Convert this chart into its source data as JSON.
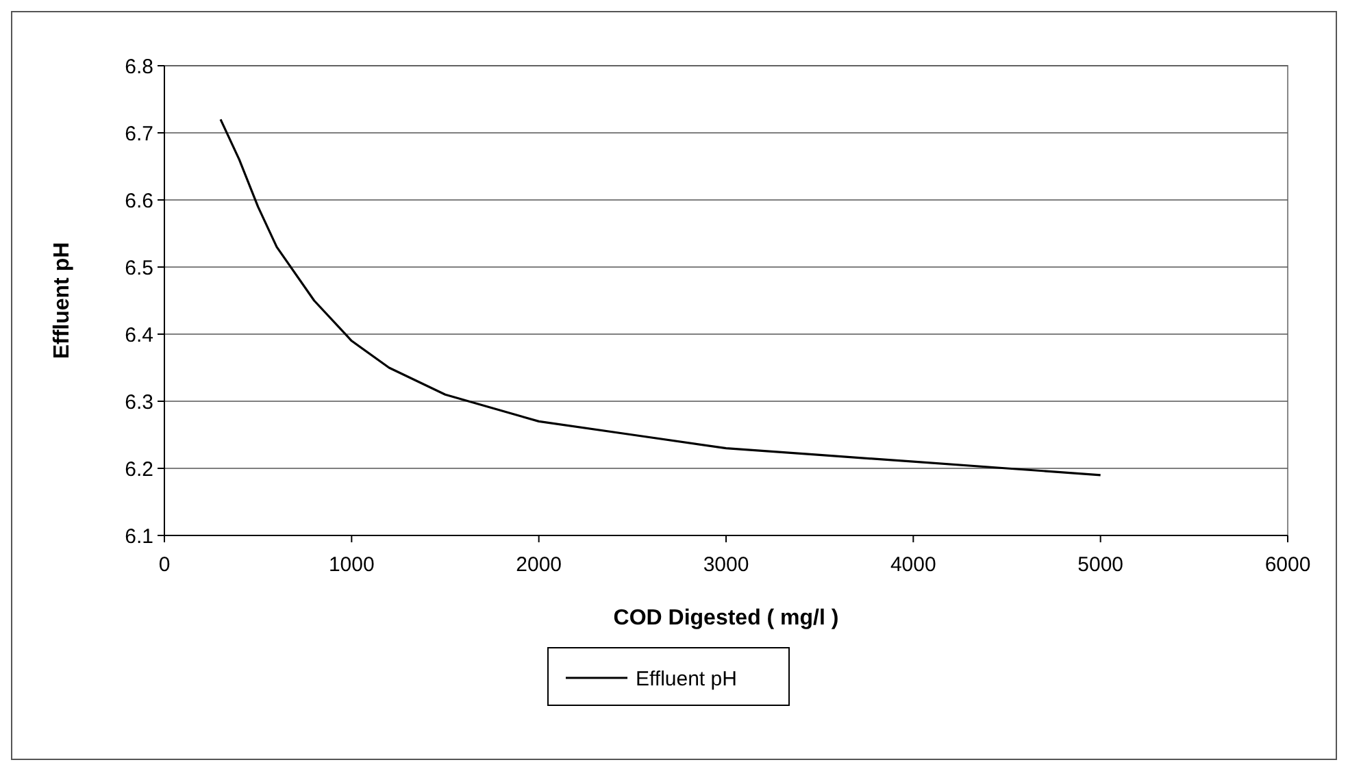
{
  "chart_data": {
    "type": "line",
    "xlabel": "COD Digested ( mg/l )",
    "ylabel": "Effluent pH",
    "xlim": [
      0,
      6000
    ],
    "xticks": [
      0,
      1000,
      2000,
      3000,
      4000,
      5000,
      6000
    ],
    "ylim": [
      6.1,
      6.8
    ],
    "yticks": [
      6.1,
      6.2,
      6.3,
      6.4,
      6.5,
      6.6,
      6.7,
      6.8
    ],
    "grid": "y",
    "legend": "bottom",
    "marker": "none",
    "line_style": "solid",
    "series": [
      {
        "name": "Effluent pH",
        "color": "#000000",
        "x": [
          300,
          400,
          500,
          600,
          800,
          1000,
          1200,
          1500,
          2000,
          2500,
          3000,
          3500,
          4000,
          4500,
          5000
        ],
        "values": [
          6.72,
          6.66,
          6.59,
          6.53,
          6.45,
          6.39,
          6.35,
          6.31,
          6.27,
          6.25,
          6.23,
          6.22,
          6.21,
          6.2,
          6.19
        ]
      }
    ]
  }
}
